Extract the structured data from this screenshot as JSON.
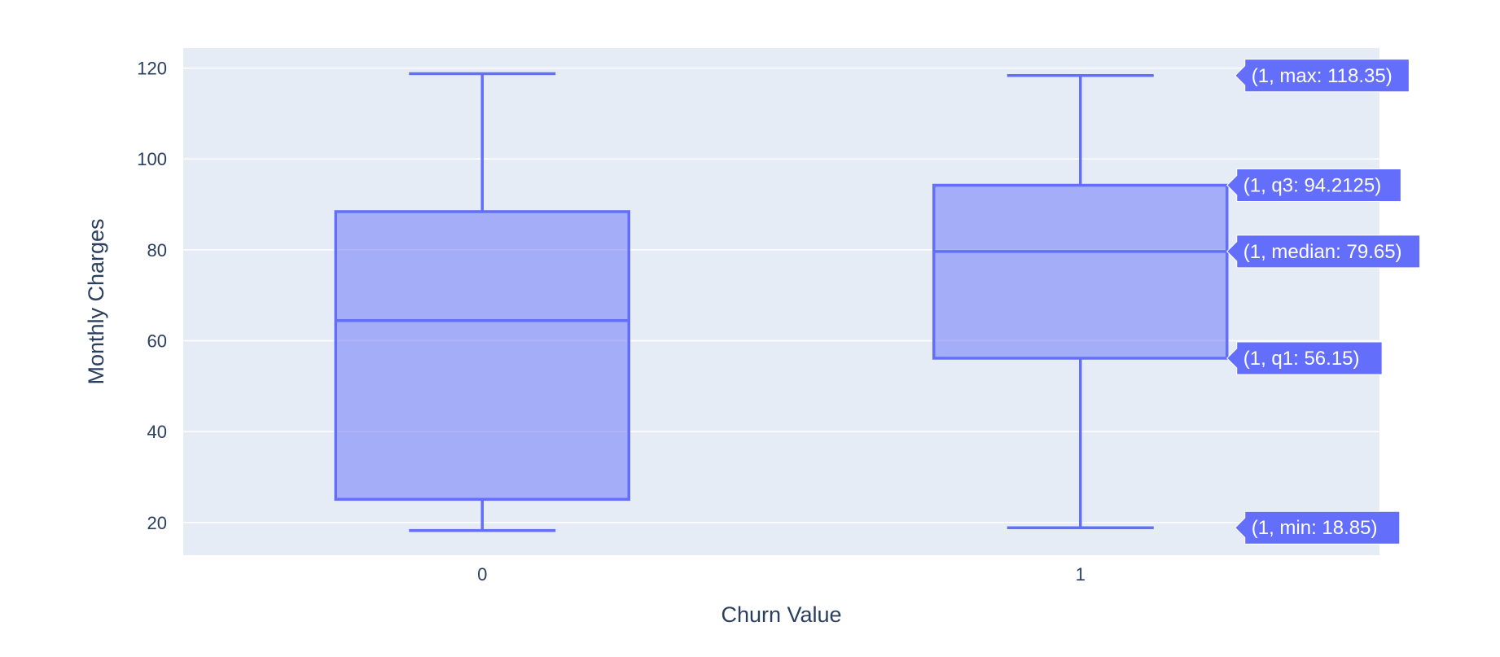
{
  "chart_data": {
    "type": "box",
    "title": "",
    "xlabel": "Churn Value",
    "ylabel": "Monthly Charges",
    "categories": [
      "0",
      "1"
    ],
    "ylim": [
      12.8,
      124.4
    ],
    "yticks": [
      20,
      40,
      60,
      80,
      100,
      120
    ],
    "grid": true,
    "colors": {
      "plot_bg": "#E5ECF6",
      "box_line": "#636EFA",
      "box_fill": "#636EFA",
      "grid": "#FFFFFF",
      "axis_text": "#2A3F5F"
    },
    "boxes": [
      {
        "category": "0",
        "min": 18.25,
        "q1": 25.1,
        "median": 64.43,
        "q3": 88.4,
        "max": 118.75
      },
      {
        "category": "1",
        "min": 18.85,
        "q1": 56.15,
        "median": 79.65,
        "q3": 94.2125,
        "max": 118.35
      }
    ],
    "hover_labels": [
      {
        "stat": "max",
        "category": "1",
        "text": "(1, max: 118.35)"
      },
      {
        "stat": "q3",
        "category": "1",
        "text": "(1, q3: 94.2125)"
      },
      {
        "stat": "median",
        "category": "1",
        "text": "(1, median: 79.65)"
      },
      {
        "stat": "q1",
        "category": "1",
        "text": "(1, q1: 56.15)"
      },
      {
        "stat": "min",
        "category": "1",
        "text": "(1, min: 18.85)"
      }
    ]
  }
}
